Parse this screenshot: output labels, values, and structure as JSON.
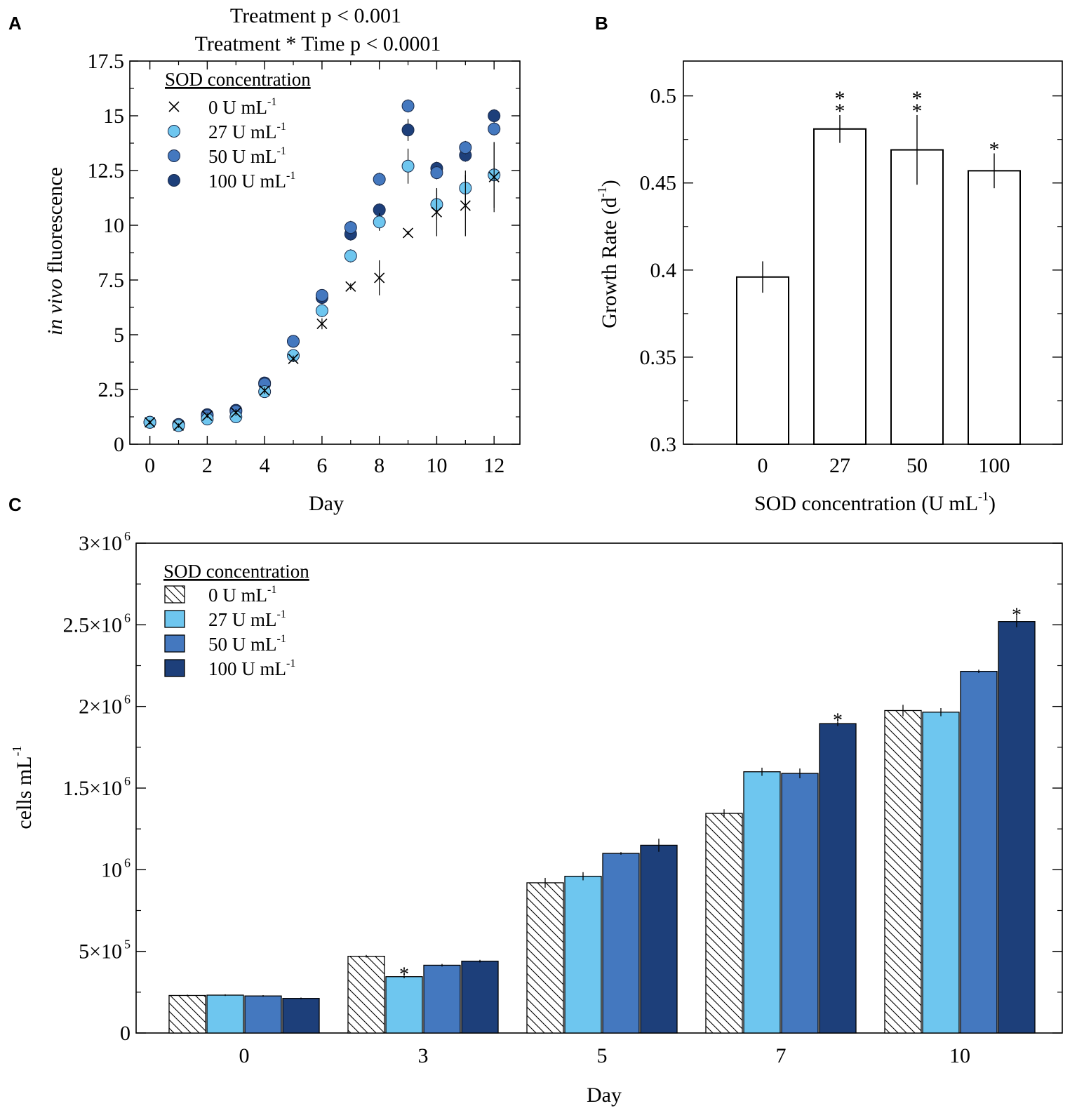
{
  "colors": {
    "c0": "#ffffff",
    "c27": "#6ec6ef",
    "c50": "#4478bf",
    "c100": "#1d3f7a",
    "axis": "#000000"
  },
  "panel_labels": {
    "a": "A",
    "b": "B",
    "c": "C"
  },
  "chart_data": [
    {
      "id": "A",
      "type": "scatter",
      "title_lines": [
        "Treatment p < 0.001",
        "Treatment * Time p < 0.0001"
      ],
      "xlabel": "Day",
      "ylabel_italic": "in vivo",
      "ylabel_rest": " fluorescence",
      "xlim": [
        -0.7,
        12.9
      ],
      "ylim": [
        0,
        17.5
      ],
      "xticks": [
        0,
        2,
        4,
        6,
        8,
        10,
        12
      ],
      "yticks": [
        0,
        2.5,
        5,
        7.5,
        10,
        12.5,
        15,
        17.5
      ],
      "ytick_labels": [
        "0",
        "2.5",
        "5",
        "7.5",
        "10",
        "12.5",
        "15",
        "17.5"
      ],
      "legend_title": "SOD concentration",
      "legend_unit": "U mL",
      "legend_sup": "-1",
      "series": [
        {
          "name": "0",
          "marker": "x",
          "color": "#000000",
          "x": [
            0,
            1,
            2,
            3,
            4,
            5,
            6,
            7,
            8,
            9,
            10,
            11,
            12
          ],
          "y": [
            1.0,
            0.85,
            1.3,
            1.45,
            2.45,
            3.9,
            5.5,
            7.2,
            7.6,
            9.65,
            10.6,
            10.9,
            12.2
          ],
          "err": [
            0.1,
            0.1,
            0.1,
            0.15,
            0.15,
            0.15,
            0.25,
            0.15,
            0.8,
            0.1,
            1.1,
            1.4,
            1.6
          ]
        },
        {
          "name": "27",
          "marker": "o",
          "color": "#6ec6ef",
          "x": [
            0,
            1,
            2,
            3,
            4,
            5,
            6,
            7,
            8,
            9,
            10,
            11,
            12
          ],
          "y": [
            1.0,
            0.85,
            1.15,
            1.25,
            2.4,
            4.05,
            6.1,
            8.6,
            10.15,
            12.7,
            10.95,
            11.7,
            12.3
          ],
          "err": [
            0.1,
            0.1,
            0.15,
            0.15,
            0.2,
            0.2,
            0.3,
            0.3,
            0.4,
            0.8,
            0.7,
            0.8,
            1.5
          ]
        },
        {
          "name": "50",
          "marker": "o",
          "color": "#4478bf",
          "x": [
            0,
            1,
            2,
            3,
            4,
            5,
            6,
            7,
            8,
            9,
            10,
            11,
            12
          ],
          "y": [
            1.0,
            0.9,
            1.3,
            1.5,
            2.75,
            4.7,
            6.8,
            9.9,
            12.1,
            15.45,
            12.4,
            13.55,
            14.4
          ],
          "err": [
            0.1,
            0.1,
            0.1,
            0.1,
            0.15,
            0.15,
            0.2,
            0.3,
            0.3,
            0.3,
            0.3,
            0.3,
            0.3
          ]
        },
        {
          "name": "100",
          "marker": "o",
          "color": "#1d3f7a",
          "x": [
            0,
            1,
            2,
            3,
            4,
            5,
            6,
            7,
            8,
            9,
            10,
            11,
            12
          ],
          "y": [
            1.0,
            0.9,
            1.35,
            1.55,
            2.8,
            4.7,
            6.7,
            9.6,
            10.7,
            14.35,
            12.6,
            13.2,
            15.0
          ],
          "err": [
            0.1,
            0.1,
            0.1,
            0.1,
            0.15,
            0.15,
            0.2,
            0.3,
            0.3,
            0.5,
            0.3,
            0.3,
            0.3
          ]
        }
      ]
    },
    {
      "id": "B",
      "type": "bar",
      "xlabel": "SOD concentration (U mL",
      "xlabel_sup": "-1",
      "xlabel_end": ")",
      "ylabel": "Growth Rate (d",
      "ylabel_sup": "-1",
      "ylabel_end": ")",
      "categories": [
        "0",
        "27",
        "50",
        "100"
      ],
      "values": [
        0.396,
        0.481,
        0.469,
        0.457
      ],
      "err": [
        0.009,
        0.008,
        0.02,
        0.01
      ],
      "significance": [
        "",
        "**",
        "**",
        "*"
      ],
      "ylim": [
        0.3,
        0.52
      ],
      "yticks": [
        0.3,
        0.35,
        0.4,
        0.45,
        0.5
      ],
      "ytick_labels": [
        "0.3",
        "0.35",
        "0.4",
        "0.45",
        "0.5"
      ]
    },
    {
      "id": "C",
      "type": "bar",
      "xlabel": "Day",
      "ylabel": "cells mL",
      "ylabel_sup": "-1",
      "categories": [
        "0",
        "3",
        "5",
        "7",
        "10"
      ],
      "ylim": [
        0,
        3000000
      ],
      "yticks": [
        0,
        500000,
        1000000,
        1500000,
        2000000,
        2500000,
        3000000
      ],
      "ytick_labels": [
        {
          "base": "0",
          "sup": ""
        },
        {
          "base": "5×10",
          "sup": "5"
        },
        {
          "base": "10",
          "sup": "6"
        },
        {
          "base": "1.5×10",
          "sup": "6"
        },
        {
          "base": "2×10",
          "sup": "6"
        },
        {
          "base": "2.5×10",
          "sup": "6"
        },
        {
          "base": "3×10",
          "sup": "6"
        }
      ],
      "legend_title": "SOD concentration",
      "legend_unit": "U mL",
      "legend_sup": "-1",
      "series": [
        {
          "name": "0",
          "fill": "hatch",
          "values": [
            230000,
            470000,
            920000,
            1345000,
            1975000
          ],
          "err": [
            5000,
            8000,
            30000,
            25000,
            35000
          ],
          "significance": [
            "",
            "",
            "",
            "",
            ""
          ]
        },
        {
          "name": "27",
          "fill": "#6ec6ef",
          "values": [
            232000,
            345000,
            960000,
            1600000,
            1965000
          ],
          "err": [
            5000,
            10000,
            25000,
            25000,
            25000
          ],
          "significance": [
            "",
            "*",
            "",
            "",
            ""
          ]
        },
        {
          "name": "50",
          "fill": "#4478bf",
          "values": [
            227000,
            415000,
            1100000,
            1590000,
            2215000
          ],
          "err": [
            5000,
            8000,
            8000,
            30000,
            10000
          ],
          "significance": [
            "",
            "",
            "",
            "",
            ""
          ]
        },
        {
          "name": "100",
          "fill": "#1d3f7a",
          "values": [
            212000,
            440000,
            1150000,
            1895000,
            2520000
          ],
          "err": [
            5000,
            8000,
            40000,
            15000,
            35000
          ],
          "significance": [
            "",
            "",
            "",
            "*",
            "*"
          ]
        }
      ]
    }
  ]
}
